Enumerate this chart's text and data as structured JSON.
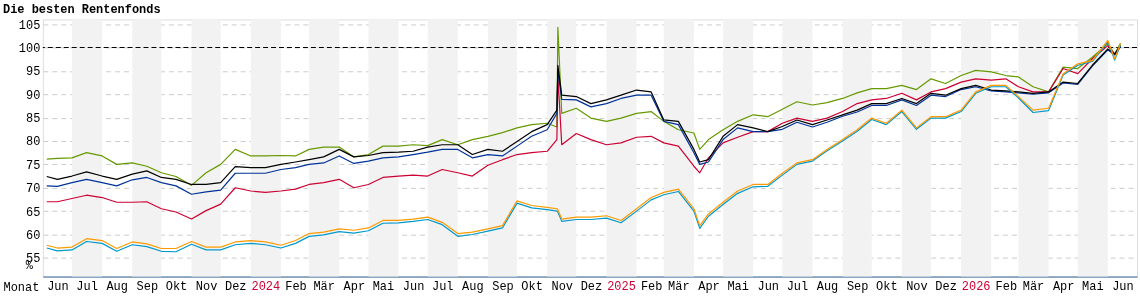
{
  "chart_data": {
    "type": "line",
    "title": "Die besten Rentenfonds",
    "xlabel": "Monat",
    "ylabel": "%",
    "x": [
      "2023-06-05",
      "2023-06-16",
      "2023-07-01",
      "2023-07-16",
      "2023-08-01",
      "2023-08-16",
      "2023-09-01",
      "2023-09-16",
      "2023-10-01",
      "2023-10-16",
      "2023-11-01",
      "2023-11-16",
      "2023-12-01",
      "2023-12-16",
      "2024-01-01",
      "2024-01-16",
      "2024-02-01",
      "2024-02-16",
      "2024-03-01",
      "2024-03-16",
      "2024-04-01",
      "2024-04-16",
      "2024-05-01",
      "2024-05-16",
      "2024-06-01",
      "2024-06-16",
      "2024-07-01",
      "2024-07-16",
      "2024-08-01",
      "2024-08-16",
      "2024-09-01",
      "2024-09-16",
      "2024-10-01",
      "2024-10-16",
      "2024-11-01",
      "2024-11-11",
      "2024-11-12",
      "2024-11-16",
      "2024-12-01",
      "2024-12-16",
      "2025-01-01",
      "2025-01-16",
      "2025-02-01",
      "2025-02-16",
      "2025-03-01",
      "2025-03-16",
      "2025-04-01",
      "2025-04-07",
      "2025-04-16",
      "2025-05-01",
      "2025-05-16",
      "2025-06-01",
      "2025-06-16",
      "2025-07-01",
      "2025-07-16",
      "2025-08-01",
      "2025-08-16",
      "2025-09-01",
      "2025-09-16",
      "2025-10-01",
      "2025-10-16",
      "2025-11-01",
      "2025-11-16",
      "2025-12-01",
      "2025-12-16",
      "2026-01-01",
      "2026-01-16",
      "2026-02-01",
      "2026-02-16",
      "2026-03-01",
      "2026-03-16",
      "2026-04-01",
      "2026-04-16",
      "2026-05-01",
      "2026-05-16",
      "2026-06-01",
      "2026-06-08",
      "2026-06-14"
    ],
    "series": [
      {
        "color": "#669900",
        "values": [
          76.1,
          76.3,
          76.4,
          77.5,
          76.8,
          75.0,
          75.3,
          74.6,
          73.2,
          72.4,
          70.5,
          73.2,
          75.0,
          78.2,
          76.8,
          76.8,
          76.9,
          76.8,
          78.2,
          78.7,
          78.7,
          76.6,
          77.1,
          78.9,
          78.9,
          79.2,
          79.0,
          80.3,
          79.2,
          80.3,
          81.0,
          81.8,
          82.8,
          83.5,
          83.8,
          83.0,
          104.3,
          85.9,
          87.0,
          84.9,
          84.2,
          84.9,
          85.9,
          86.3,
          84.2,
          82.4,
          81.7,
          78.2,
          80.3,
          82.4,
          84.2,
          85.6,
          85.2,
          86.8,
          88.4,
          87.7,
          88.2,
          89.1,
          90.3,
          91.2,
          91.2,
          91.9,
          91.0,
          93.3,
          92.3,
          94.0,
          95.1,
          94.8,
          94.0,
          93.7,
          91.6,
          90.5,
          95.8,
          95.5,
          97.9,
          100.8,
          98.6,
          100.9
        ]
      },
      {
        "color": "#cc0033",
        "values": [
          67.0,
          67.0,
          67.7,
          68.4,
          67.9,
          66.9,
          66.9,
          67.0,
          65.5,
          64.8,
          63.3,
          65.1,
          66.5,
          70.0,
          69.3,
          69.0,
          69.3,
          69.7,
          70.7,
          71.1,
          71.8,
          70.0,
          70.7,
          72.2,
          72.5,
          72.7,
          72.5,
          73.9,
          73.2,
          72.5,
          74.8,
          76.0,
          77.1,
          77.5,
          77.8,
          80.3,
          94.0,
          79.2,
          81.6,
          80.3,
          79.2,
          79.6,
          80.8,
          81.0,
          79.6,
          78.9,
          74.6,
          73.2,
          76.4,
          79.6,
          80.8,
          82.0,
          82.0,
          83.8,
          84.9,
          84.2,
          84.9,
          86.3,
          88.0,
          88.8,
          89.1,
          90.2,
          88.8,
          90.5,
          91.2,
          92.6,
          93.3,
          93.0,
          93.3,
          91.6,
          90.5,
          90.5,
          95.5,
          94.4,
          97.6,
          100.4,
          98.6,
          100.4
        ]
      },
      {
        "color": "#003399",
        "values": [
          70.4,
          70.3,
          71.1,
          71.8,
          71.1,
          70.4,
          71.7,
          72.2,
          71.1,
          70.4,
          68.6,
          69.1,
          69.5,
          73.1,
          73.1,
          73.1,
          73.9,
          74.3,
          75.0,
          75.3,
          76.8,
          75.2,
          75.7,
          76.4,
          76.6,
          77.1,
          77.6,
          78.2,
          78.2,
          76.4,
          77.1,
          76.8,
          78.9,
          81.0,
          82.4,
          85.9,
          95.0,
          88.9,
          88.8,
          87.3,
          88.0,
          89.1,
          89.8,
          89.8,
          84.2,
          83.5,
          77.5,
          75.0,
          75.5,
          80.3,
          82.8,
          82.0,
          82.0,
          82.5,
          84.0,
          83.0,
          84.0,
          85.3,
          86.2,
          87.6,
          87.6,
          88.8,
          87.6,
          89.8,
          89.5,
          91.0,
          91.6,
          90.7,
          90.5,
          90.3,
          90.0,
          90.3,
          92.4,
          92.1,
          96.0,
          99.5,
          98.4,
          100.2
        ]
      },
      {
        "color": "#000000",
        "values": [
          72.4,
          71.8,
          72.5,
          73.4,
          72.5,
          71.8,
          72.9,
          73.6,
          72.2,
          71.8,
          70.7,
          70.7,
          71.1,
          74.5,
          74.3,
          74.3,
          75.0,
          75.5,
          76.0,
          76.6,
          78.2,
          76.6,
          76.9,
          77.5,
          77.6,
          77.8,
          78.7,
          79.2,
          79.2,
          77.1,
          78.2,
          77.8,
          79.9,
          82.0,
          83.5,
          86.6,
          96.2,
          89.8,
          89.5,
          88.0,
          88.8,
          89.8,
          90.9,
          90.5,
          84.5,
          84.2,
          78.2,
          75.5,
          76.0,
          81.0,
          83.5,
          82.8,
          82.0,
          83.1,
          84.5,
          83.5,
          84.5,
          85.6,
          86.6,
          88.0,
          88.0,
          89.1,
          88.0,
          90.2,
          89.8,
          91.2,
          91.9,
          90.9,
          90.7,
          90.5,
          90.2,
          90.5,
          92.6,
          92.3,
          96.2,
          99.7,
          98.6,
          100.4
        ]
      },
      {
        "color": "#0099cc",
        "values": [
          57.1,
          56.5,
          56.7,
          58.5,
          58.1,
          56.4,
          57.8,
          57.4,
          56.4,
          56.3,
          57.9,
          56.7,
          56.7,
          57.8,
          58.1,
          57.8,
          57.1,
          58.1,
          59.6,
          59.9,
          60.6,
          60.3,
          60.8,
          62.4,
          62.5,
          62.8,
          63.2,
          62.1,
          59.6,
          60.0,
          60.7,
          61.4,
          66.7,
          65.7,
          65.3,
          65.0,
          64.8,
          62.8,
          63.2,
          63.2,
          63.5,
          62.5,
          65.0,
          67.4,
          68.5,
          69.2,
          65.0,
          61.3,
          63.9,
          66.4,
          68.8,
          70.2,
          70.3,
          72.7,
          75.0,
          75.7,
          77.9,
          80.0,
          82.1,
          84.6,
          83.5,
          86.3,
          82.5,
          84.9,
          84.9,
          86.3,
          90.2,
          91.6,
          91.6,
          89.2,
          86.1,
          86.5,
          94.1,
          96.2,
          97.0,
          101.2,
          97.3,
          100.5
        ]
      },
      {
        "color": "#ff9900",
        "values": [
          57.7,
          57.1,
          57.3,
          59.1,
          58.7,
          57.0,
          58.4,
          58.0,
          57.0,
          57.0,
          58.5,
          57.3,
          57.3,
          58.4,
          58.7,
          58.4,
          57.7,
          58.7,
          60.2,
          60.5,
          61.2,
          60.9,
          61.4,
          63.0,
          63.0,
          63.3,
          63.7,
          62.6,
          60.2,
          60.5,
          61.2,
          61.9,
          67.2,
          66.2,
          65.8,
          65.5,
          65.3,
          63.3,
          63.7,
          63.7,
          64.0,
          63.0,
          65.5,
          67.9,
          69.0,
          69.7,
          65.5,
          61.9,
          64.4,
          66.9,
          69.3,
          70.7,
          70.7,
          73.1,
          75.3,
          76.0,
          78.2,
          80.3,
          82.4,
          84.9,
          83.8,
          86.6,
          82.8,
          85.2,
          85.2,
          86.6,
          90.5,
          91.9,
          91.9,
          89.5,
          86.6,
          87.0,
          94.4,
          96.5,
          97.2,
          101.5,
          97.6,
          100.8
        ]
      }
    ],
    "xlim": [
      "2023-06-01",
      "2026-07-01"
    ],
    "xticks": [
      {
        "value": "2023-06-16",
        "label": "Jun"
      },
      {
        "value": "2023-07-16",
        "label": "Jul"
      },
      {
        "value": "2023-08-16",
        "label": "Aug"
      },
      {
        "value": "2023-09-16",
        "label": "Sep"
      },
      {
        "value": "2023-10-16",
        "label": "Okt"
      },
      {
        "value": "2023-11-16",
        "label": "Nov"
      },
      {
        "value": "2023-12-16",
        "label": "Dez"
      },
      {
        "value": "2024-01-16",
        "label": "2024"
      },
      {
        "value": "2024-02-16",
        "label": "Feb"
      },
      {
        "value": "2024-03-16",
        "label": "Mär"
      },
      {
        "value": "2024-04-16",
        "label": "Apr"
      },
      {
        "value": "2024-05-16",
        "label": "Mai"
      },
      {
        "value": "2024-06-16",
        "label": "Jun"
      },
      {
        "value": "2024-07-16",
        "label": "Jul"
      },
      {
        "value": "2024-08-16",
        "label": "Aug"
      },
      {
        "value": "2024-09-16",
        "label": "Sep"
      },
      {
        "value": "2024-10-16",
        "label": "Okt"
      },
      {
        "value": "2024-11-16",
        "label": "Nov"
      },
      {
        "value": "2024-12-16",
        "label": "Dez"
      },
      {
        "value": "2025-01-16",
        "label": "2025"
      },
      {
        "value": "2025-02-16",
        "label": "Feb"
      },
      {
        "value": "2025-03-16",
        "label": "Mär"
      },
      {
        "value": "2025-04-16",
        "label": "Apr"
      },
      {
        "value": "2025-05-16",
        "label": "Mai"
      },
      {
        "value": "2025-06-16",
        "label": "Jun"
      },
      {
        "value": "2025-07-16",
        "label": "Jul"
      },
      {
        "value": "2025-08-16",
        "label": "Aug"
      },
      {
        "value": "2025-09-16",
        "label": "Sep"
      },
      {
        "value": "2025-10-16",
        "label": "Okt"
      },
      {
        "value": "2025-11-16",
        "label": "Nov"
      },
      {
        "value": "2025-12-16",
        "label": "Dez"
      },
      {
        "value": "2026-01-16",
        "label": "2026"
      },
      {
        "value": "2026-02-16",
        "label": "Feb"
      },
      {
        "value": "2026-03-16",
        "label": "Mär"
      },
      {
        "value": "2026-04-16",
        "label": "Apr"
      },
      {
        "value": "2026-05-16",
        "label": "Mai"
      },
      {
        "value": "2026-06-16",
        "label": "Jun"
      }
    ],
    "ylim": [
      51,
      106
    ],
    "yticks": [
      55,
      60,
      65,
      70,
      75,
      80,
      85,
      90,
      95,
      100,
      105
    ],
    "grid": "y",
    "ref_lines": [
      {
        "axis": "y",
        "value": 100,
        "color": "#000000",
        "line_style": "dashed"
      }
    ],
    "bands": [
      {
        "axis": "x",
        "from": "2023-07-01",
        "to": "2023-08-01",
        "color": "#f2f2f2"
      },
      {
        "axis": "x",
        "from": "2023-09-01",
        "to": "2023-10-01",
        "color": "#f2f2f2"
      },
      {
        "axis": "x",
        "from": "2023-11-01",
        "to": "2023-12-01",
        "color": "#f2f2f2"
      },
      {
        "axis": "x",
        "from": "2024-01-01",
        "to": "2024-02-01",
        "color": "#f2f2f2"
      },
      {
        "axis": "x",
        "from": "2024-03-01",
        "to": "2024-04-01",
        "color": "#f2f2f2"
      },
      {
        "axis": "x",
        "from": "2024-05-01",
        "to": "2024-06-01",
        "color": "#f2f2f2"
      },
      {
        "axis": "x",
        "from": "2024-07-01",
        "to": "2024-08-01",
        "color": "#f2f2f2"
      },
      {
        "axis": "x",
        "from": "2024-09-01",
        "to": "2024-10-01",
        "color": "#f2f2f2"
      },
      {
        "axis": "x",
        "from": "2024-11-01",
        "to": "2024-12-01",
        "color": "#f2f2f2"
      },
      {
        "axis": "x",
        "from": "2025-01-01",
        "to": "2025-02-01",
        "color": "#f2f2f2"
      },
      {
        "axis": "x",
        "from": "2025-03-01",
        "to": "2025-04-01",
        "color": "#f2f2f2"
      },
      {
        "axis": "x",
        "from": "2025-05-01",
        "to": "2025-06-01",
        "color": "#f2f2f2"
      },
      {
        "axis": "x",
        "from": "2025-07-01",
        "to": "2025-08-01",
        "color": "#f2f2f2"
      },
      {
        "axis": "x",
        "from": "2025-09-01",
        "to": "2025-10-01",
        "color": "#f2f2f2"
      },
      {
        "axis": "x",
        "from": "2025-11-01",
        "to": "2025-12-01",
        "color": "#f2f2f2"
      },
      {
        "axis": "x",
        "from": "2026-01-01",
        "to": "2026-02-01",
        "color": "#f2f2f2"
      },
      {
        "axis": "x",
        "from": "2026-03-01",
        "to": "2026-04-01",
        "color": "#f2f2f2"
      },
      {
        "axis": "x",
        "from": "2026-05-01",
        "to": "2026-06-01",
        "color": "#f2f2f2"
      }
    ]
  }
}
